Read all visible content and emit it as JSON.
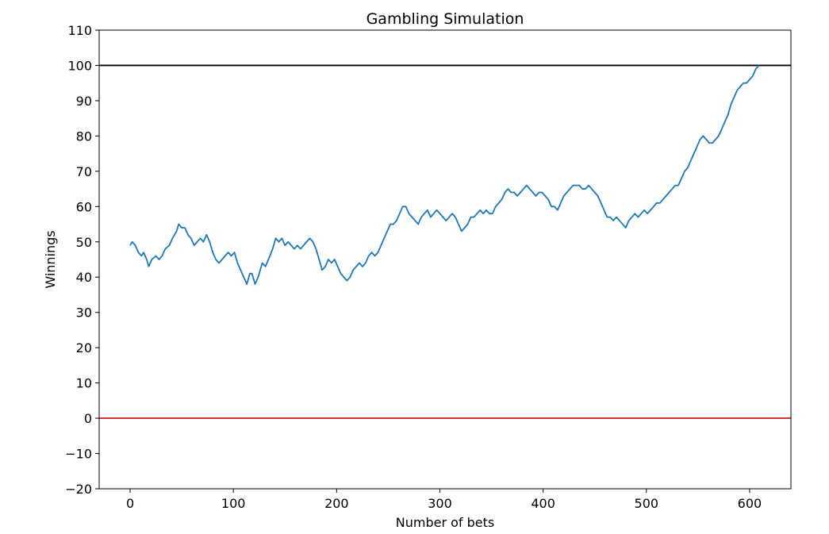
{
  "chart_data": {
    "type": "line",
    "title": "Gambling Simulation",
    "xlabel": "Number of bets",
    "ylabel": "Winnings",
    "xlim": [
      -30,
      640
    ],
    "ylim": [
      -20,
      110
    ],
    "xticks": [
      0,
      100,
      200,
      300,
      400,
      500,
      600
    ],
    "yticks": [
      -20,
      -10,
      0,
      10,
      20,
      30,
      40,
      50,
      60,
      70,
      80,
      90,
      100,
      110
    ],
    "reference_lines": [
      {
        "y": 100,
        "color": "#000000"
      },
      {
        "y": 0,
        "color": "#d62728"
      }
    ],
    "series": [
      {
        "color": "#1f77b4",
        "points": [
          [
            0,
            49
          ],
          [
            2,
            50
          ],
          [
            5,
            49
          ],
          [
            8,
            47
          ],
          [
            11,
            46
          ],
          [
            13,
            47
          ],
          [
            16,
            45
          ],
          [
            18,
            43
          ],
          [
            21,
            45
          ],
          [
            25,
            46
          ],
          [
            28,
            45
          ],
          [
            31,
            46
          ],
          [
            34,
            48
          ],
          [
            38,
            49
          ],
          [
            41,
            51
          ],
          [
            45,
            53
          ],
          [
            47,
            55
          ],
          [
            50,
            54
          ],
          [
            53,
            54
          ],
          [
            56,
            52
          ],
          [
            59,
            51
          ],
          [
            62,
            49
          ],
          [
            65,
            50
          ],
          [
            68,
            51
          ],
          [
            71,
            50
          ],
          [
            74,
            52
          ],
          [
            77,
            50
          ],
          [
            80,
            47
          ],
          [
            83,
            45
          ],
          [
            86,
            44
          ],
          [
            89,
            45
          ],
          [
            92,
            46
          ],
          [
            95,
            47
          ],
          [
            98,
            46
          ],
          [
            101,
            47
          ],
          [
            104,
            44
          ],
          [
            107,
            42
          ],
          [
            110,
            40
          ],
          [
            113,
            38
          ],
          [
            116,
            41
          ],
          [
            118,
            41
          ],
          [
            121,
            38
          ],
          [
            124,
            40
          ],
          [
            128,
            44
          ],
          [
            131,
            43
          ],
          [
            134,
            45
          ],
          [
            138,
            48
          ],
          [
            141,
            51
          ],
          [
            144,
            50
          ],
          [
            147,
            51
          ],
          [
            150,
            49
          ],
          [
            153,
            50
          ],
          [
            156,
            49
          ],
          [
            159,
            48
          ],
          [
            162,
            49
          ],
          [
            165,
            48
          ],
          [
            168,
            49
          ],
          [
            171,
            50
          ],
          [
            174,
            51
          ],
          [
            177,
            50
          ],
          [
            180,
            48
          ],
          [
            183,
            45
          ],
          [
            186,
            42
          ],
          [
            189,
            43
          ],
          [
            192,
            45
          ],
          [
            195,
            44
          ],
          [
            198,
            45
          ],
          [
            201,
            43
          ],
          [
            204,
            41
          ],
          [
            207,
            40
          ],
          [
            210,
            39
          ],
          [
            213,
            40
          ],
          [
            216,
            42
          ],
          [
            219,
            43
          ],
          [
            222,
            44
          ],
          [
            225,
            43
          ],
          [
            228,
            44
          ],
          [
            231,
            46
          ],
          [
            234,
            47
          ],
          [
            237,
            46
          ],
          [
            240,
            47
          ],
          [
            243,
            49
          ],
          [
            246,
            51
          ],
          [
            249,
            53
          ],
          [
            252,
            55
          ],
          [
            255,
            55
          ],
          [
            258,
            56
          ],
          [
            261,
            58
          ],
          [
            264,
            60
          ],
          [
            267,
            60
          ],
          [
            270,
            58
          ],
          [
            273,
            57
          ],
          [
            276,
            56
          ],
          [
            279,
            55
          ],
          [
            282,
            57
          ],
          [
            285,
            58
          ],
          [
            288,
            59
          ],
          [
            291,
            57
          ],
          [
            294,
            58
          ],
          [
            297,
            59
          ],
          [
            300,
            58
          ],
          [
            303,
            57
          ],
          [
            306,
            56
          ],
          [
            309,
            57
          ],
          [
            312,
            58
          ],
          [
            315,
            57
          ],
          [
            318,
            55
          ],
          [
            321,
            53
          ],
          [
            324,
            54
          ],
          [
            327,
            55
          ],
          [
            330,
            57
          ],
          [
            333,
            57
          ],
          [
            336,
            58
          ],
          [
            339,
            59
          ],
          [
            342,
            58
          ],
          [
            345,
            59
          ],
          [
            348,
            58
          ],
          [
            351,
            58
          ],
          [
            354,
            60
          ],
          [
            357,
            61
          ],
          [
            360,
            62
          ],
          [
            363,
            64
          ],
          [
            366,
            65
          ],
          [
            369,
            64
          ],
          [
            372,
            64
          ],
          [
            375,
            63
          ],
          [
            378,
            64
          ],
          [
            381,
            65
          ],
          [
            384,
            66
          ],
          [
            387,
            65
          ],
          [
            390,
            64
          ],
          [
            393,
            63
          ],
          [
            396,
            64
          ],
          [
            399,
            64
          ],
          [
            402,
            63
          ],
          [
            405,
            62
          ],
          [
            408,
            60
          ],
          [
            411,
            60
          ],
          [
            414,
            59
          ],
          [
            417,
            61
          ],
          [
            420,
            63
          ],
          [
            423,
            64
          ],
          [
            426,
            65
          ],
          [
            429,
            66
          ],
          [
            432,
            66
          ],
          [
            435,
            66
          ],
          [
            438,
            65
          ],
          [
            441,
            65
          ],
          [
            444,
            66
          ],
          [
            447,
            65
          ],
          [
            450,
            64
          ],
          [
            453,
            63
          ],
          [
            456,
            61
          ],
          [
            459,
            59
          ],
          [
            462,
            57
          ],
          [
            465,
            57
          ],
          [
            468,
            56
          ],
          [
            471,
            57
          ],
          [
            474,
            56
          ],
          [
            477,
            55
          ],
          [
            480,
            54
          ],
          [
            483,
            56
          ],
          [
            486,
            57
          ],
          [
            489,
            58
          ],
          [
            492,
            57
          ],
          [
            495,
            58
          ],
          [
            498,
            59
          ],
          [
            501,
            58
          ],
          [
            504,
            59
          ],
          [
            507,
            60
          ],
          [
            510,
            61
          ],
          [
            513,
            61
          ],
          [
            516,
            62
          ],
          [
            519,
            63
          ],
          [
            522,
            64
          ],
          [
            525,
            65
          ],
          [
            528,
            66
          ],
          [
            531,
            66
          ],
          [
            534,
            68
          ],
          [
            537,
            70
          ],
          [
            540,
            71
          ],
          [
            543,
            73
          ],
          [
            546,
            75
          ],
          [
            549,
            77
          ],
          [
            552,
            79
          ],
          [
            555,
            80
          ],
          [
            558,
            79
          ],
          [
            561,
            78
          ],
          [
            564,
            78
          ],
          [
            567,
            79
          ],
          [
            570,
            80
          ],
          [
            573,
            82
          ],
          [
            576,
            84
          ],
          [
            579,
            86
          ],
          [
            582,
            89
          ],
          [
            585,
            91
          ],
          [
            588,
            93
          ],
          [
            591,
            94
          ],
          [
            594,
            95
          ],
          [
            597,
            95
          ],
          [
            600,
            96
          ],
          [
            603,
            97
          ],
          [
            606,
            99
          ],
          [
            609,
            100
          ]
        ]
      }
    ]
  }
}
